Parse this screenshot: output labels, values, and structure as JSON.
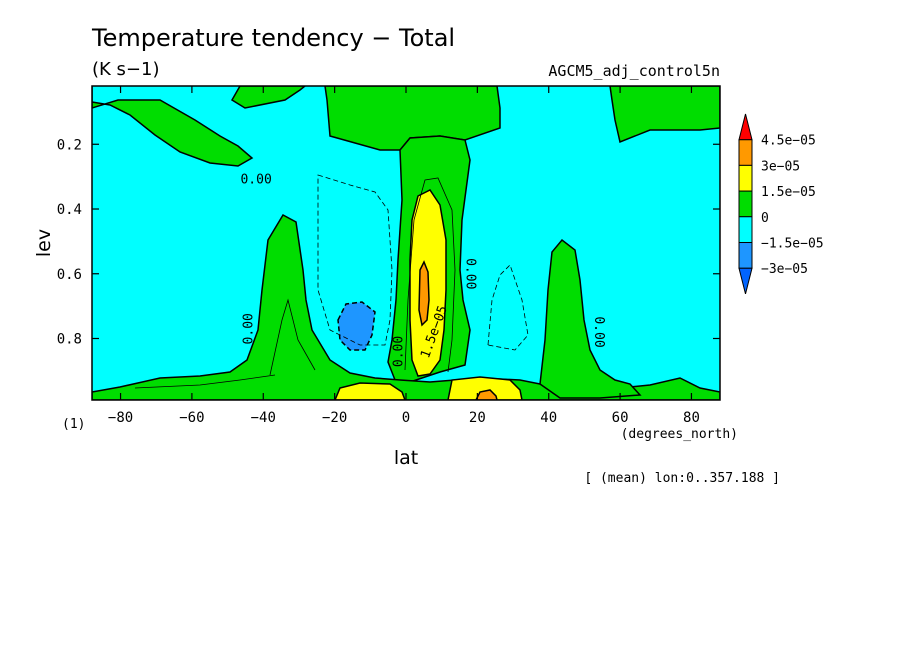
{
  "chart_data": {
    "type": "contour",
    "title": "Temperature tendency − Total",
    "units": "(K s−1)",
    "dataset": "AGCM5_adj_control5n",
    "xlabel": "lat",
    "x_units": "(degrees_north)",
    "ylabel": "lev",
    "y_units": "(1)",
    "x_ticks": [
      -80,
      -60,
      -40,
      -20,
      0,
      20,
      40,
      60,
      80
    ],
    "y_ticks": [
      0.2,
      0.4,
      0.6,
      0.8
    ],
    "x_tick_labels": [
      "−80",
      "−60",
      "−40",
      "−20",
      "0",
      "20",
      "40",
      "60",
      "80"
    ],
    "y_tick_labels": [
      "0.2",
      "0.4",
      "0.6",
      "0.8"
    ],
    "xlim": [
      -88,
      88
    ],
    "ylim": [
      0.02,
      0.99
    ],
    "y_inverted": true,
    "note": "[ (mean) lon:0..357.188 ]",
    "colorbar": [
      {
        "label": "4.5e−05",
        "color": "#ff0000"
      },
      {
        "label": "3e−05",
        "color": "#ff9900"
      },
      {
        "label": "1.5e−05",
        "color": "#ffff00"
      },
      {
        "label": "0",
        "color": "#00dd00"
      },
      {
        "label": "−1.5e−05",
        "color": "#00ffff"
      },
      {
        "label": "−3e−05",
        "color": "#1e96ff"
      },
      {
        "label": "",
        "color": "#0064ff"
      }
    ],
    "contour_labels": [
      {
        "text": "0.00",
        "lat": -42,
        "lev": 0.31,
        "rotate": 0
      },
      {
        "text": "0.00",
        "lat": -44,
        "lev": 0.77,
        "rotate": -90
      },
      {
        "text": "0.00",
        "lat": -2,
        "lev": 0.84,
        "rotate": -90
      },
      {
        "text": "1.5e−05",
        "lat": 8,
        "lev": 0.78,
        "rotate": -70
      },
      {
        "text": "0.00",
        "lat": 18,
        "lev": 0.6,
        "rotate": 90
      },
      {
        "text": "0.00",
        "lat": 54,
        "lev": 0.78,
        "rotate": 90
      }
    ]
  }
}
